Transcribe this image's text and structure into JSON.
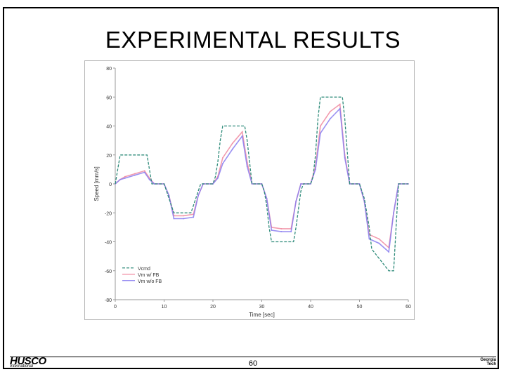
{
  "slide": {
    "title": "EXPERIMENTAL RESULTS",
    "page_number": "60",
    "logo_left": {
      "name": "HUSCO",
      "sub": "International"
    },
    "logo_right": {
      "line1": "Georgia",
      "line2": "Tech"
    }
  },
  "chart_data": {
    "type": "line",
    "xlabel": "Time [sec]",
    "ylabel": "Speed [mm/s]",
    "xlim": [
      0,
      60
    ],
    "ylim": [
      -80,
      80
    ],
    "xticks": [
      0,
      10,
      20,
      30,
      40,
      50,
      60
    ],
    "yticks": [
      -80,
      -60,
      -40,
      -20,
      0,
      20,
      40,
      60,
      80
    ],
    "grid": false,
    "legend_position": "bottom-left",
    "colors": {
      "cmd": "#2e8b7a",
      "fb": "#f08aa0",
      "nofb": "#8a7ef0"
    },
    "series": [
      {
        "name": "Vcmd",
        "style": "dashed",
        "x": [
          0,
          1,
          6.5,
          7.5,
          10,
          10.5,
          11,
          12,
          14,
          15,
          15.5,
          16,
          17,
          17.5,
          18,
          20,
          20.5,
          21,
          21.5,
          22,
          26.5,
          27,
          28,
          30,
          30.5,
          31,
          31.5,
          32,
          36.5,
          37,
          38,
          38.5,
          40,
          40.5,
          41,
          41.5,
          42,
          46.5,
          47,
          48,
          50,
          51,
          52,
          52.5,
          56,
          57,
          58,
          60
        ],
        "y": [
          0,
          20,
          20,
          0,
          0,
          -5,
          -10,
          -20,
          -20,
          -20,
          -20,
          -15,
          -5,
          0,
          0,
          0,
          5,
          15,
          30,
          40,
          40,
          30,
          0,
          0,
          -5,
          -15,
          -30,
          -40,
          -40,
          -30,
          -5,
          0,
          0,
          5,
          20,
          45,
          60,
          60,
          45,
          0,
          0,
          -10,
          -30,
          -45,
          -60,
          -60,
          0,
          0
        ]
      },
      {
        "name": "Vm w/ FB",
        "x": [
          0,
          1,
          2,
          4,
          6,
          7,
          8,
          10,
          11,
          12,
          14,
          16,
          17,
          18,
          20,
          21,
          22,
          24,
          26,
          27,
          28,
          30,
          31,
          32,
          34,
          36,
          37,
          38,
          40,
          41,
          42,
          44,
          46,
          47,
          48,
          50,
          51,
          52,
          54,
          56,
          57,
          58,
          60
        ],
        "y": [
          0,
          3,
          5,
          7,
          9,
          4,
          0,
          0,
          -8,
          -22,
          -22,
          -21,
          -8,
          0,
          0,
          5,
          18,
          28,
          36,
          15,
          0,
          0,
          -10,
          -30,
          -31,
          -31,
          -12,
          0,
          0,
          12,
          40,
          50,
          55,
          20,
          0,
          0,
          -12,
          -35,
          -38,
          -44,
          -20,
          0,
          0
        ]
      },
      {
        "name": "Vm w/o FB",
        "x": [
          0,
          1,
          2,
          4,
          6,
          7,
          8,
          10,
          11,
          12,
          14,
          16,
          17,
          18,
          20,
          21,
          22,
          24,
          26,
          27,
          28,
          30,
          31,
          32,
          34,
          36,
          37,
          38,
          40,
          41,
          42,
          44,
          46,
          47,
          48,
          50,
          51,
          52,
          54,
          56,
          57,
          58,
          60
        ],
        "y": [
          0,
          3,
          4,
          6,
          8,
          3,
          0,
          0,
          -8,
          -24,
          -24,
          -23,
          -8,
          0,
          0,
          4,
          14,
          24,
          33,
          12,
          0,
          0,
          -10,
          -32,
          -33,
          -33,
          -12,
          0,
          0,
          10,
          35,
          45,
          52,
          18,
          0,
          0,
          -12,
          -38,
          -41,
          -47,
          -20,
          0,
          0
        ]
      }
    ]
  }
}
